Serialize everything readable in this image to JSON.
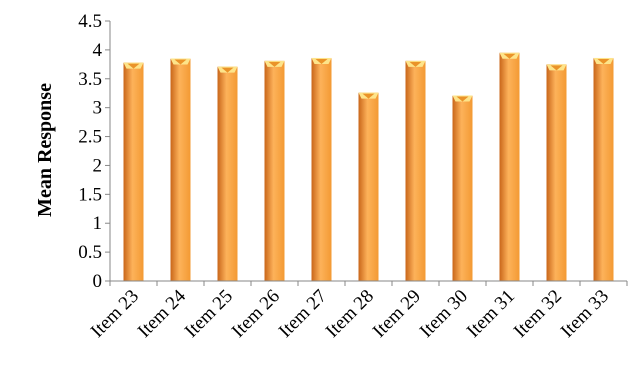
{
  "chart_data": {
    "type": "bar",
    "title": "",
    "xlabel": "",
    "ylabel": "Mean Response",
    "ylim": [
      0,
      4.5
    ],
    "yticks": [
      "0",
      "0.5",
      "1",
      "1.5",
      "2",
      "2.5",
      "3",
      "3.5",
      "4",
      "4.5"
    ],
    "categories": [
      "Item 23",
      "Item 24",
      "Item 25",
      "Item 26",
      "Item 27",
      "Item 28",
      "Item 29",
      "Item 30",
      "Item 31",
      "Item 32",
      "Item 33"
    ],
    "values": [
      3.78,
      3.85,
      3.71,
      3.81,
      3.86,
      3.26,
      3.81,
      3.21,
      3.95,
      3.75,
      3.86
    ],
    "grid": false,
    "legend": "none",
    "colors": {
      "bar_light": "#fdb25a",
      "bar_mid": "#f39a33",
      "bar_dark": "#c9661a",
      "bar_top": "#fde48a",
      "axis": "#878787"
    }
  }
}
